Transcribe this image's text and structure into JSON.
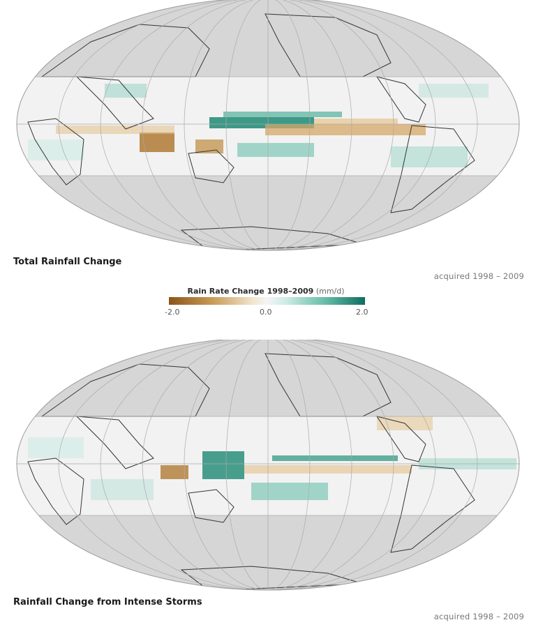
{
  "panels": [
    {
      "title": "Total Rainfall Change",
      "acquired": "acquired 1998 – 2009"
    },
    {
      "title": "Rainfall Change from Intense Storms",
      "acquired": "acquired 1998 – 2009"
    }
  ],
  "legend": {
    "title": "Rain Rate Change 1998–2009",
    "unit": "(mm/d)",
    "min_label": "-2.0",
    "mid_label": "0.0",
    "max_label": "2.0",
    "colors": {
      "negative": "#8a5418",
      "neutral": "#f5f5f5",
      "positive": "#0f6e5f"
    }
  },
  "map_colors": {
    "ocean": "#f2f2f2",
    "land_masked": "#d6d6d6",
    "coastline": "#333333",
    "graticule": "#aaaaaa"
  }
}
